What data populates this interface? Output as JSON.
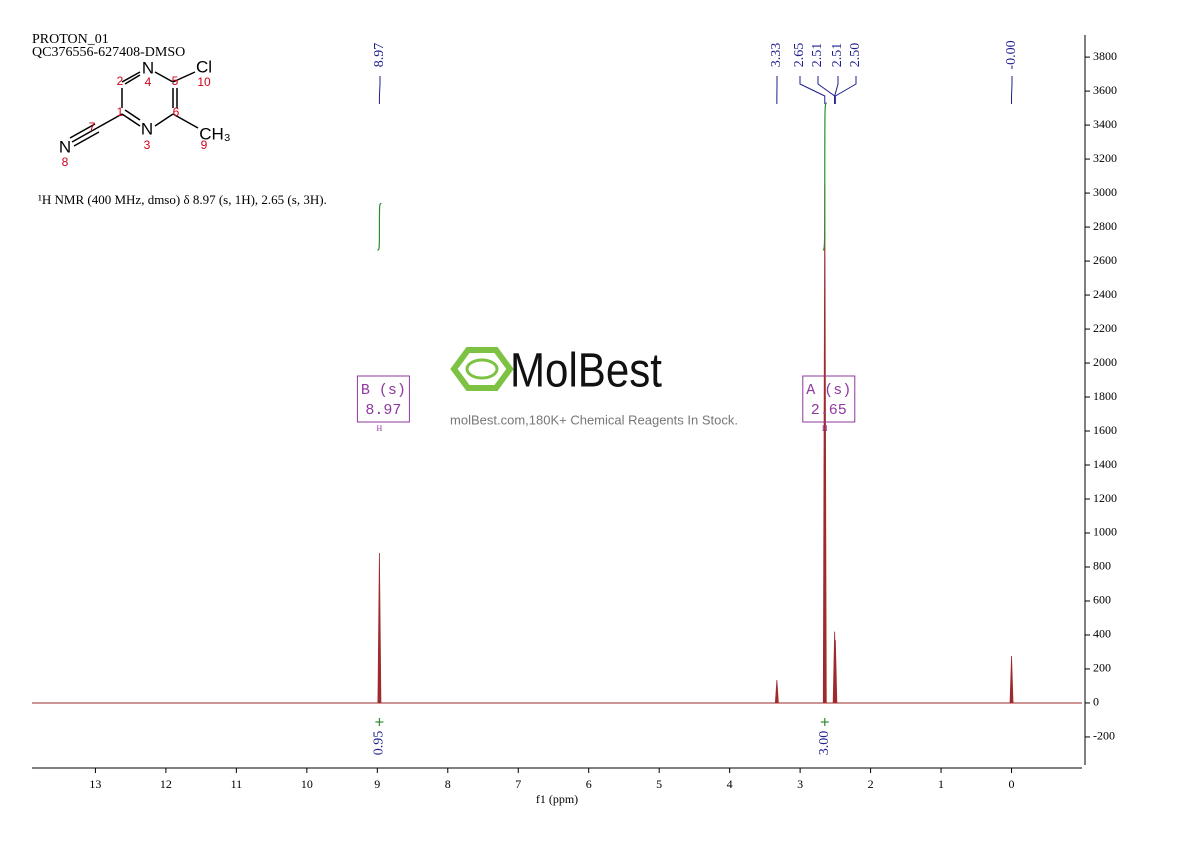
{
  "header": {
    "experiment": "PROTON_01",
    "sample": "QC376556-627408-DMSO",
    "description": "¹H NMR (400 MHz, dmso) δ 8.97 (s, 1H), 2.65 (s, 3H)."
  },
  "structure": {
    "atoms": [
      "N",
      "Cl",
      "N",
      "CH₃",
      "N"
    ],
    "numbers": [
      "2",
      "4",
      "5",
      "10",
      "7",
      "1",
      "6",
      "3",
      "9",
      "8"
    ]
  },
  "watermark": {
    "brand": "MolBest",
    "tagline": "molBest.com,180K+ Chemical Reagents In Stock."
  },
  "chart_data": {
    "type": "nmr",
    "xlabel": "f1 (ppm)",
    "xlim": [
      13.9,
      -1.0
    ],
    "xticks": [
      13,
      12,
      11,
      10,
      9,
      8,
      7,
      6,
      5,
      4,
      3,
      2,
      1,
      0
    ],
    "ylim": [
      -365,
      3930
    ],
    "yticks": [
      3800,
      3600,
      3400,
      3200,
      3000,
      2800,
      2600,
      2400,
      2200,
      2000,
      1800,
      1600,
      1400,
      1200,
      1000,
      800,
      600,
      400,
      200,
      0,
      -200
    ],
    "color": "#9e2a2b",
    "peaks": {
      "x": [
        8.97,
        3.33,
        2.65,
        2.51,
        2.5,
        0.0
      ],
      "values": [
        882,
        135,
        3050,
        420,
        370,
        276
      ]
    },
    "peak_labels": [
      8.97,
      3.33,
      2.65,
      2.51,
      2.51,
      {
        "value": 2.5,
        "label": "2.50"
      },
      {
        "value": 0,
        "label": "-0.00"
      }
    ],
    "peak_label_color": "#1f1f8f",
    "integrals": {
      "x": [
        8.97,
        2.65
      ],
      "values": [
        0.95,
        3.0
      ],
      "value_labels": [
        "0.95",
        "3.00"
      ],
      "color": "#2e8b2e"
    },
    "multiplets": [
      {
        "label": "B (s)",
        "shift": 8.97,
        "nucleus": "H"
      },
      {
        "label": "A (s)",
        "shift": 2.65,
        "nucleus": "H"
      }
    ],
    "multiplet_color": "#8e3a9e"
  }
}
